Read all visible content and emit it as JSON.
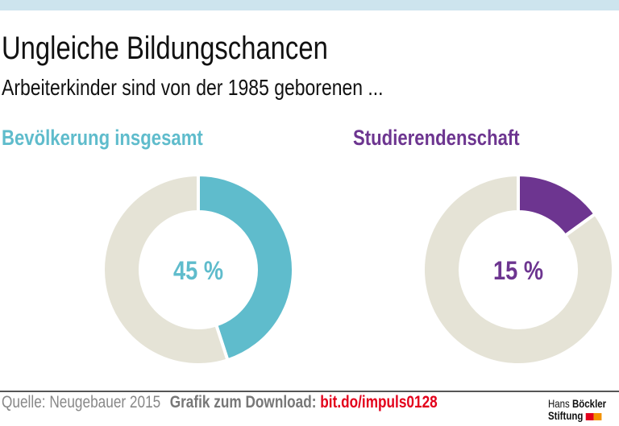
{
  "header": {
    "title": "Ungleiche Bildungschancen",
    "subtitle": "Arbeiterkinder sind von der 1985 geborenen ..."
  },
  "chart_data": [
    {
      "type": "pie",
      "title": "Bevölkerung insgesamt",
      "values": [
        45,
        55
      ],
      "center_label": "45 %",
      "colors": [
        "#5fbccc",
        "#e5e3d6"
      ]
    },
    {
      "type": "pie",
      "title": "Studierendenschaft",
      "values": [
        15,
        85
      ],
      "center_label": "15 %",
      "colors": [
        "#6d3590",
        "#e5e3d6"
      ]
    }
  ],
  "footer": {
    "source": "Quelle: Neugebauer 2015",
    "download_label": "Grafik zum Download:",
    "download_link": "bit.do/impuls0128",
    "link_color": "#e3001b"
  },
  "logo": {
    "line1a": "Hans",
    "line1b": "Böckler",
    "line2": "Stiftung"
  }
}
